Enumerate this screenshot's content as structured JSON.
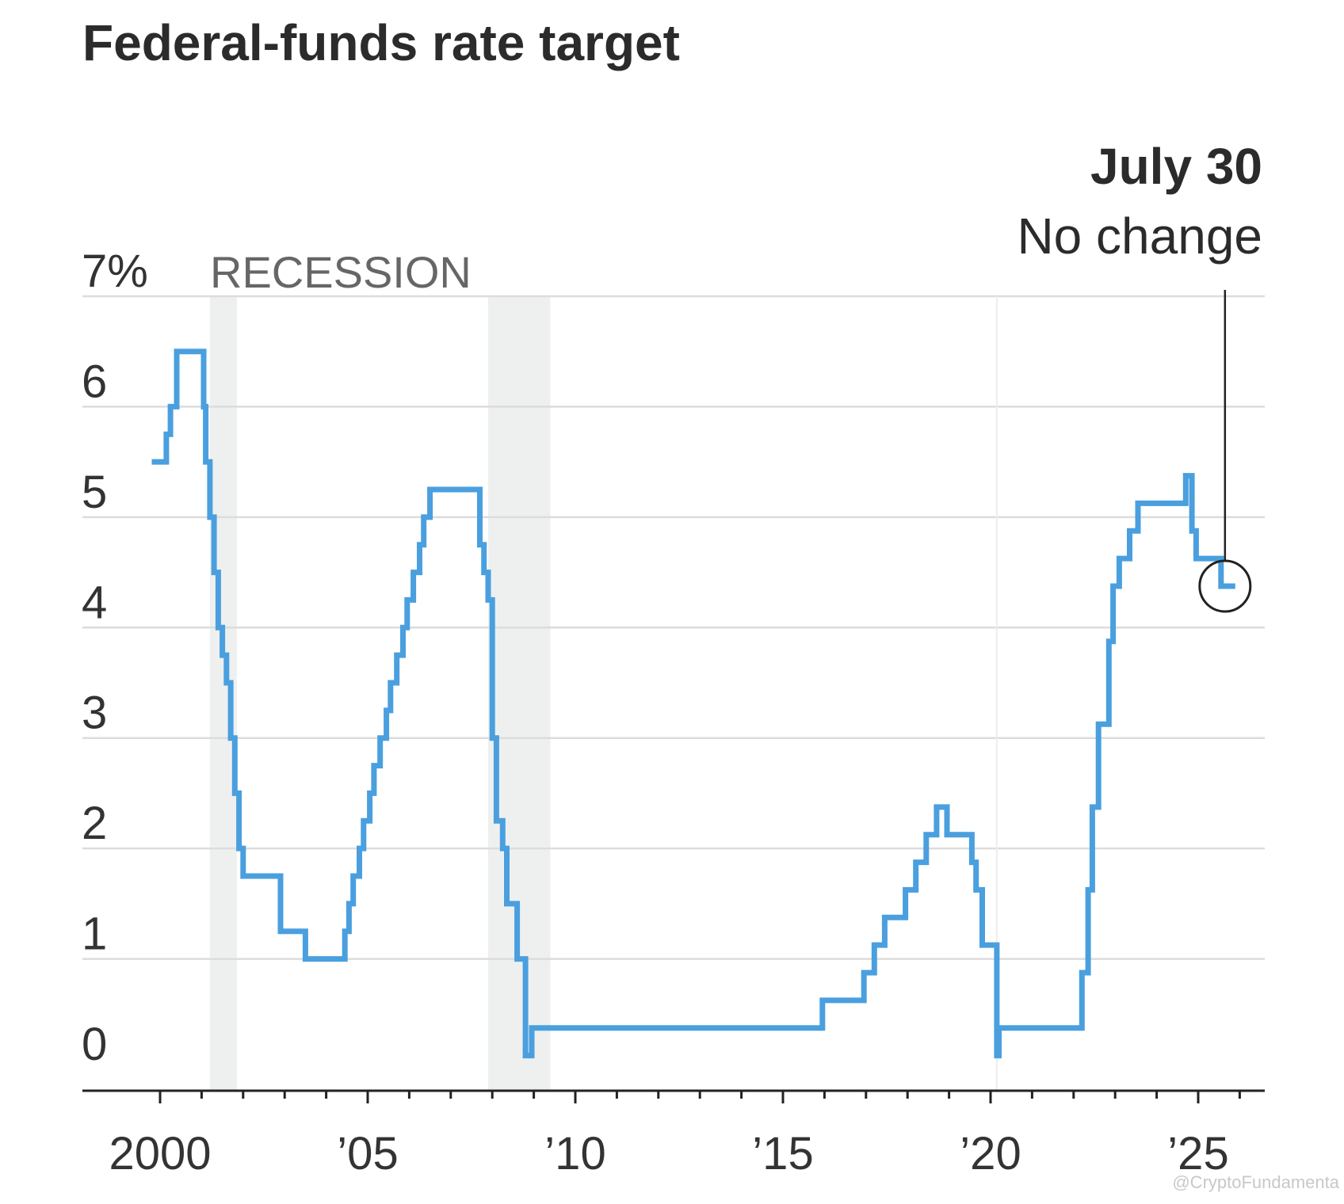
{
  "chart_data": {
    "type": "line",
    "title": "Federal-funds rate target",
    "ylabel": "",
    "xlabel": "",
    "ylim": [
      0,
      7
    ],
    "xlim": [
      1998.2,
      2026.6
    ],
    "y_ticks": [
      {
        "value": 7,
        "label": "7%"
      },
      {
        "value": 6,
        "label": "6"
      },
      {
        "value": 5,
        "label": "5"
      },
      {
        "value": 4,
        "label": "4"
      },
      {
        "value": 3,
        "label": "3"
      },
      {
        "value": 2,
        "label": "2"
      },
      {
        "value": 1,
        "label": "1"
      },
      {
        "value": 0,
        "label": "0"
      }
    ],
    "x_ticks": [
      {
        "value": 2000,
        "label": "2000"
      },
      {
        "value": 2005,
        "label": "’05"
      },
      {
        "value": 2010,
        "label": "’10"
      },
      {
        "value": 2015,
        "label": "’15"
      },
      {
        "value": 2020,
        "label": "’20"
      },
      {
        "value": 2025,
        "label": "’25"
      }
    ],
    "grid": "horizontal",
    "recession_label": "RECESSION",
    "recessions": [
      [
        2001.2,
        2001.85
      ],
      [
        2007.9,
        2009.4
      ]
    ],
    "line_color": "#4a9fdf",
    "series": [
      {
        "x": [
          1999.8,
          2000.15,
          2000.25,
          2000.4,
          2001.05,
          2001.1,
          2001.2,
          2001.3,
          2001.4,
          2001.5,
          2001.6,
          2001.7,
          2001.8,
          2001.9,
          2002.0,
          2002.9,
          2003.5,
          2004.45,
          2004.55,
          2004.65,
          2004.8,
          2004.9,
          2005.05,
          2005.15,
          2005.3,
          2005.45,
          2005.55,
          2005.7,
          2005.85,
          2005.95,
          2006.1,
          2006.25,
          2006.35,
          2006.5,
          2007.7,
          2007.8,
          2007.9,
          2008.0,
          2008.1,
          2008.25,
          2008.35,
          2008.6,
          2008.8,
          2008.95,
          2015.95,
          2016.95,
          2017.2,
          2017.45,
          2017.95,
          2018.2,
          2018.45,
          2018.7,
          2018.95,
          2019.55,
          2019.65,
          2019.8,
          2020.15,
          2020.2,
          2022.2,
          2022.35,
          2022.45,
          2022.6,
          2022.85,
          2022.95,
          2023.1,
          2023.35,
          2023.55,
          2024.7,
          2024.85,
          2024.95,
          2025.55
        ],
        "y": [
          5.5,
          5.75,
          6.0,
          6.5,
          6.0,
          5.5,
          5.0,
          4.5,
          4.0,
          3.75,
          3.5,
          3.0,
          2.5,
          2.0,
          1.75,
          1.25,
          1.0,
          1.25,
          1.5,
          1.75,
          2.0,
          2.25,
          2.5,
          2.75,
          3.0,
          3.25,
          3.5,
          3.75,
          4.0,
          4.25,
          4.5,
          4.75,
          5.0,
          5.25,
          4.75,
          4.5,
          4.25,
          3.0,
          2.25,
          2.0,
          1.5,
          1.0,
          0.125,
          0.375,
          0.625,
          0.875,
          1.125,
          1.375,
          1.625,
          1.875,
          2.125,
          2.375,
          2.125,
          1.875,
          1.625,
          1.125,
          0.125,
          0.375,
          0.875,
          1.625,
          2.375,
          3.125,
          3.875,
          4.375,
          4.625,
          4.875,
          5.125,
          5.375,
          4.875,
          4.625,
          4.375
        ]
      }
    ],
    "annotation": {
      "date": "July 30",
      "text": "No change",
      "x": 2025.55,
      "y": 4.375
    },
    "watermark": "@CryptoFundamenta"
  }
}
